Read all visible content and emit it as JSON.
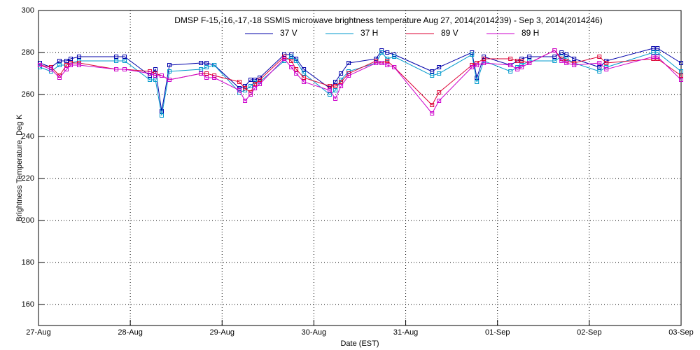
{
  "chart_data": {
    "type": "line",
    "title": "DMSP F-15,-16,-17,-18 SSMIS microwave brightness temperature Aug 27, 2014(2014239) - Sep  3, 2014(2014246)",
    "xlabel": "Date (EST)",
    "ylabel": "Brightness Temperature, Deg K",
    "x": [
      0.015,
      0.137,
      0.229,
      0.305,
      0.351,
      0.442,
      0.847,
      0.938,
      1.213,
      1.274,
      1.342,
      1.426,
      1.77,
      1.831,
      1.915,
      2.189,
      2.25,
      2.311,
      2.357,
      2.41,
      2.677,
      2.754,
      2.807,
      2.891,
      3.173,
      3.234,
      3.295,
      3.379,
      3.677,
      3.738,
      3.799,
      3.875,
      4.287,
      4.363,
      4.722,
      4.775,
      4.851,
      5.141,
      5.217,
      5.263,
      5.347,
      5.622,
      5.698,
      5.751,
      5.835,
      6.11,
      6.186,
      6.697,
      6.743,
      7.0
    ],
    "series": [
      {
        "name": "37 V",
        "color": "#0000aa",
        "values": [
          275,
          273,
          276,
          276,
          277,
          278,
          278,
          278,
          269,
          272,
          252,
          274,
          275,
          275,
          274,
          263,
          264,
          267,
          267,
          268,
          279,
          279,
          277,
          272,
          263,
          266,
          270,
          275,
          277,
          281,
          280,
          279,
          271,
          273,
          280,
          268,
          278,
          274,
          276,
          277,
          278,
          278,
          280,
          279,
          277,
          273,
          276,
          282,
          282,
          275
        ]
      },
      {
        "name": "37 H",
        "color": "#0099cc",
        "values": [
          273,
          271,
          274,
          274,
          275,
          276,
          276,
          276,
          267,
          267,
          250,
          271,
          272,
          273,
          274,
          261,
          262,
          264,
          266,
          266,
          276,
          278,
          276,
          270,
          260,
          262,
          267,
          271,
          275,
          280,
          277,
          278,
          269,
          270,
          279,
          266,
          276,
          271,
          273,
          274,
          276,
          276,
          278,
          277,
          275,
          271,
          273,
          280,
          280,
          271
        ]
      },
      {
        "name": "89 V",
        "color": "#dd0033",
        "values": [
          274,
          273,
          269,
          274,
          275,
          275,
          272,
          272,
          271,
          270,
          269,
          267,
          270,
          270,
          269,
          266,
          263,
          261,
          265,
          267,
          278,
          276,
          272,
          268,
          264,
          264,
          266,
          270,
          276,
          275,
          276,
          273,
          255,
          261,
          274,
          275,
          277,
          277,
          276,
          276,
          275,
          281,
          277,
          276,
          275,
          278,
          275,
          277,
          277,
          269
        ]
      },
      {
        "name": "89 H",
        "color": "#cc00cc",
        "values": [
          274,
          272,
          268,
          272,
          274,
          274,
          272,
          272,
          270,
          269,
          269,
          267,
          270,
          268,
          268,
          262,
          257,
          260,
          263,
          265,
          277,
          273,
          270,
          266,
          262,
          258,
          264,
          269,
          275,
          275,
          274,
          273,
          251,
          257,
          273,
          274,
          275,
          274,
          272,
          273,
          275,
          281,
          276,
          275,
          274,
          275,
          272,
          278,
          278,
          267
        ]
      }
    ],
    "xlim": [
      0,
      7
    ],
    "xticks": [
      {
        "value": 0,
        "label": "27-Aug"
      },
      {
        "value": 1,
        "label": "28-Aug"
      },
      {
        "value": 2,
        "label": "29-Aug"
      },
      {
        "value": 3,
        "label": "30-Aug"
      },
      {
        "value": 4,
        "label": "31-Aug"
      },
      {
        "value": 5,
        "label": "01-Sep"
      },
      {
        "value": 6,
        "label": "02-Sep"
      },
      {
        "value": 7,
        "label": "03-Sep"
      }
    ],
    "ylim": [
      150,
      300
    ],
    "yticks": [
      160,
      180,
      200,
      220,
      240,
      260,
      280,
      300
    ],
    "grid": true,
    "legend": "top"
  }
}
